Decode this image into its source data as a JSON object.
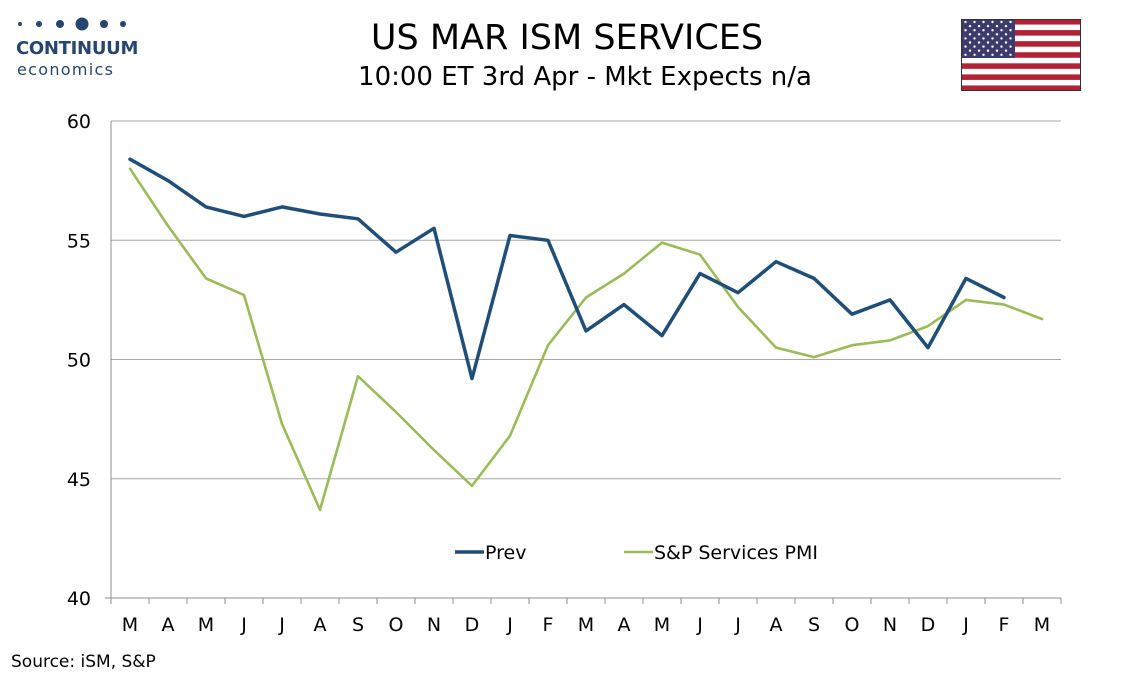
{
  "header": {
    "title": "US MAR ISM SERVICES",
    "subtitle": "10:00 ET 3rd Apr - Mkt Expects n/a"
  },
  "logo": {
    "name": "CONTINUUM",
    "tagline": "economics",
    "color": "#27466f"
  },
  "flag": {
    "icon": "us-flag-icon"
  },
  "source": "Source: iSM, S&P",
  "chart_data": {
    "type": "line",
    "title": "",
    "xlabel": "",
    "ylabel": "",
    "ylim": [
      40,
      60
    ],
    "yticks": [
      40,
      45,
      50,
      55,
      60
    ],
    "grid": true,
    "legend_placement": "bottom-center",
    "categories": [
      "M",
      "A",
      "M",
      "J",
      "J",
      "A",
      "S",
      "O",
      "N",
      "D",
      "J",
      "F",
      "M",
      "A",
      "M",
      "J",
      "J",
      "A",
      "S",
      "O",
      "N",
      "D",
      "J",
      "F",
      "M"
    ],
    "series": [
      {
        "name": "Prev",
        "color": "#1f4e79",
        "values": [
          58.4,
          57.5,
          56.4,
          56.0,
          56.4,
          56.1,
          55.9,
          54.5,
          55.5,
          49.2,
          55.2,
          55.0,
          51.2,
          52.3,
          51.0,
          53.6,
          52.8,
          54.1,
          53.4,
          51.9,
          52.5,
          50.5,
          53.4,
          52.6,
          null
        ]
      },
      {
        "name": "S&P Services PMI",
        "color": "#9bbb59",
        "values": [
          58.0,
          55.6,
          53.4,
          52.7,
          47.3,
          43.7,
          49.3,
          47.8,
          46.2,
          44.7,
          46.8,
          50.6,
          52.6,
          53.6,
          54.9,
          54.4,
          52.2,
          50.5,
          50.1,
          50.6,
          50.8,
          51.4,
          52.5,
          52.3,
          51.7
        ]
      }
    ]
  }
}
